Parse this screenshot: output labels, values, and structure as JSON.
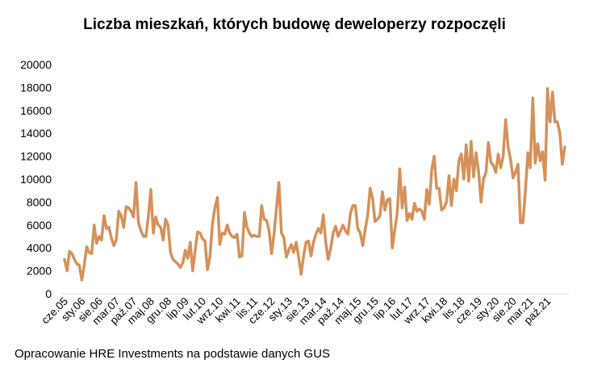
{
  "source_note": "Opracowanie HRE Investments na podstawie danych GUS",
  "chart_data": {
    "type": "line",
    "title": "Liczba mieszkań, których budowę deweloperzy rozpoczęli",
    "xlabel": "",
    "ylabel": "",
    "ylim": [
      0,
      20000
    ],
    "yticks": [
      0,
      2000,
      4000,
      6000,
      8000,
      10000,
      12000,
      14000,
      16000,
      18000,
      20000
    ],
    "grid": false,
    "legend": "none",
    "line_color": "#d4915a",
    "x_tick_labels": [
      "cze.05",
      "sty.06",
      "sie.06",
      "mar.07",
      "paź.07",
      "maj.08",
      "gru.08",
      "lip.09",
      "lut.10",
      "wrz.10",
      "kwi.11",
      "lis.11",
      "cze.12",
      "sty.13",
      "sie.13",
      "mar.14",
      "paź.14",
      "maj.15",
      "gru.15",
      "lip.16",
      "lut.17",
      "wrz.17",
      "kwi.18",
      "lis.18",
      "cze.19",
      "sty.20",
      "sie.20",
      "mar.21",
      "paź.21"
    ],
    "series": [
      {
        "x_start": "2005-06",
        "frequency": "monthly",
        "values": [
          3000,
          2000,
          3700,
          3500,
          3000,
          2600,
          2500,
          1200,
          2500,
          4100,
          3600,
          3500,
          6000,
          4400,
          5000,
          4700,
          6800,
          5700,
          5800,
          4900,
          4200,
          4700,
          7200,
          6800,
          5800,
          7600,
          7500,
          7200,
          6700,
          9700,
          6200,
          5500,
          5000,
          5000,
          6700,
          9100,
          5300,
          6700,
          6000,
          5800,
          4700,
          6500,
          6000,
          3600,
          3000,
          2800,
          2600,
          2300,
          2700,
          3800,
          3100,
          4500,
          2000,
          3800,
          5400,
          5300,
          4800,
          4600,
          2100,
          3200,
          6100,
          7500,
          8400,
          4300,
          5300,
          5200,
          6000,
          5300,
          5000,
          4900,
          5200,
          3200,
          3300,
          7100,
          5800,
          5300,
          5000,
          5100,
          5000,
          5000,
          7700,
          6500,
          6400,
          5500,
          3500,
          5200,
          7500,
          9700,
          5300,
          4900,
          3200,
          3800,
          4300,
          3600,
          4500,
          3200,
          1700,
          3300,
          4500,
          4600,
          3300,
          4500,
          5200,
          5700,
          5300,
          6900,
          4500,
          3000,
          4000,
          5300,
          5900,
          5000,
          5500,
          6000,
          5500,
          5200,
          7000,
          7700,
          7700,
          5700,
          5300,
          4200,
          5600,
          6800,
          9200,
          8300,
          6300,
          6500,
          6800,
          8900,
          7300,
          8200,
          8300,
          4000,
          5600,
          7000,
          10900,
          7500,
          9300,
          6400,
          7000,
          6500,
          7900,
          7200,
          7400,
          7200,
          6500,
          9100,
          7800,
          10800,
          12000,
          9200,
          9200,
          7300,
          7500,
          8000,
          10300,
          7700,
          10000,
          9000,
          11600,
          12200,
          10000,
          13000,
          9800,
          13300,
          10200,
          12300,
          10700,
          8000,
          10000,
          10600,
          13200,
          11500,
          11200,
          10600,
          12200,
          11000,
          12000,
          15200,
          12800,
          11700,
          10100,
          10600,
          11300,
          6200,
          6200,
          8900,
          12300,
          11000,
          17100,
          11400,
          13100,
          11600,
          12400,
          9900,
          17900,
          15000,
          17600,
          15000,
          15000,
          14000,
          11300,
          12800
        ]
      }
    ]
  }
}
